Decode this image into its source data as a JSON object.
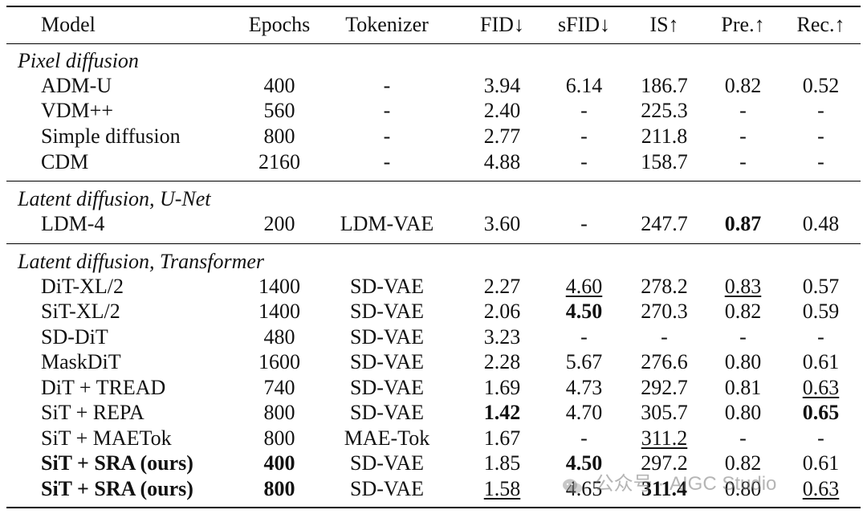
{
  "header": {
    "model": "Model",
    "epochs": "Epochs",
    "tokenizer": "Tokenizer",
    "fid": "FID↓",
    "sfid": "sFID↓",
    "is": "IS↑",
    "pre": "Pre.↑",
    "rec": "Rec.↑"
  },
  "sections": [
    {
      "title": "Pixel diffusion",
      "rows": [
        {
          "model": "ADM-U",
          "epochs": "400",
          "tokenizer": "-",
          "fid": "3.94",
          "sfid": "6.14",
          "is": "186.7",
          "pre": "0.82",
          "rec": "0.52"
        },
        {
          "model": "VDM++",
          "epochs": "560",
          "tokenizer": "-",
          "fid": "2.40",
          "sfid": "-",
          "is": "225.3",
          "pre": "-",
          "rec": "-"
        },
        {
          "model": "Simple diffusion",
          "epochs": "800",
          "tokenizer": "-",
          "fid": "2.77",
          "sfid": "-",
          "is": "211.8",
          "pre": "-",
          "rec": "-"
        },
        {
          "model": "CDM",
          "epochs": "2160",
          "tokenizer": "-",
          "fid": "4.88",
          "sfid": "-",
          "is": "158.7",
          "pre": "-",
          "rec": "-"
        }
      ]
    },
    {
      "title": "Latent diffusion, U-Net",
      "rows": [
        {
          "model": "LDM-4",
          "epochs": "200",
          "tokenizer": "LDM-VAE",
          "fid": "3.60",
          "sfid": "-",
          "is": "247.7",
          "pre": "0.87",
          "rec": "0.48"
        }
      ]
    },
    {
      "title": "Latent diffusion, Transformer",
      "rows": [
        {
          "model": "DiT-XL/2",
          "epochs": "1400",
          "tokenizer": "SD-VAE",
          "fid": "2.27",
          "sfid": "4.60",
          "is": "278.2",
          "pre": "0.83",
          "rec": "0.57"
        },
        {
          "model": "SiT-XL/2",
          "epochs": "1400",
          "tokenizer": "SD-VAE",
          "fid": "2.06",
          "sfid": "4.50",
          "is": "270.3",
          "pre": "0.82",
          "rec": "0.59"
        },
        {
          "model": "SD-DiT",
          "epochs": "480",
          "tokenizer": "SD-VAE",
          "fid": "3.23",
          "sfid": "-",
          "is": "-",
          "pre": "-",
          "rec": "-"
        },
        {
          "model": "MaskDiT",
          "epochs": "1600",
          "tokenizer": "SD-VAE",
          "fid": "2.28",
          "sfid": "5.67",
          "is": "276.6",
          "pre": "0.80",
          "rec": "0.61"
        },
        {
          "model": "DiT + TREAD",
          "epochs": "740",
          "tokenizer": "SD-VAE",
          "fid": "1.69",
          "sfid": "4.73",
          "is": "292.7",
          "pre": "0.81",
          "rec": "0.63"
        },
        {
          "model": "SiT + REPA",
          "epochs": "800",
          "tokenizer": "SD-VAE",
          "fid": "1.42",
          "sfid": "4.70",
          "is": "305.7",
          "pre": "0.80",
          "rec": "0.65"
        },
        {
          "model": "SiT + MAETok",
          "epochs": "800",
          "tokenizer": "MAE-Tok",
          "fid": "1.67",
          "sfid": "-",
          "is": "311.2",
          "pre": "-",
          "rec": "-"
        },
        {
          "model": "SiT + SRA (ours)",
          "epochs": "400",
          "tokenizer": "SD-VAE",
          "fid": "1.85",
          "sfid": "4.50",
          "is": "297.2",
          "pre": "0.82",
          "rec": "0.61"
        },
        {
          "model": "SiT + SRA (ours)",
          "epochs": "800",
          "tokenizer": "SD-VAE",
          "fid": "1.58",
          "sfid": "4.65",
          "is": "311.4",
          "pre": "0.80",
          "rec": "0.63"
        }
      ]
    }
  ],
  "watermark": {
    "text": "公众号 · AIGC Studio",
    "icon": "wechat-icon"
  }
}
